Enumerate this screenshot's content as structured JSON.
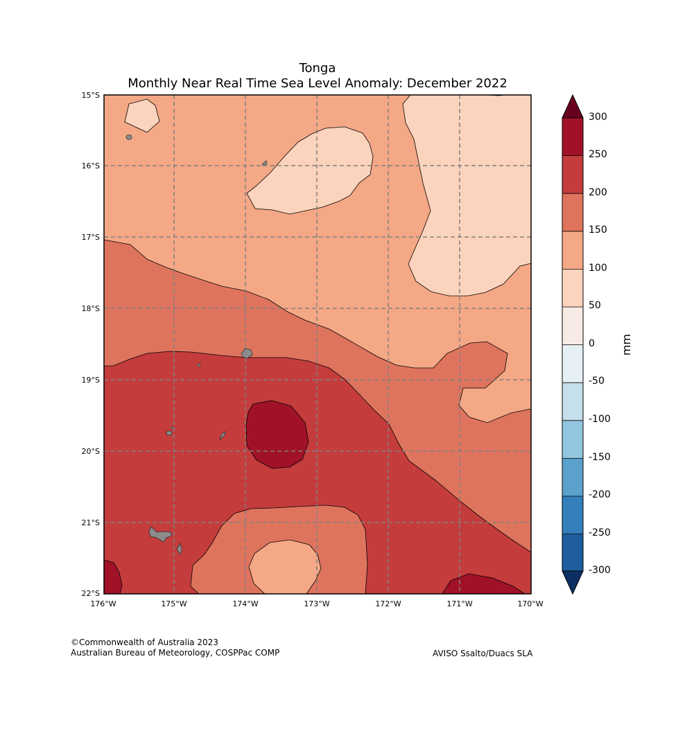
{
  "title": {
    "region": "Tonga",
    "subtitle": "Monthly Near Real Time Sea Level Anomaly: December 2022"
  },
  "map": {
    "lat_labels": [
      "15°S",
      "16°S",
      "17°S",
      "18°S",
      "19°S",
      "20°S",
      "21°S",
      "22°S"
    ],
    "lon_labels": [
      "176°W",
      "175°W",
      "174°W",
      "173°W",
      "172°W",
      "171°W",
      "170°W"
    ],
    "extent": {
      "lon": [
        -176,
        -170
      ],
      "lat": [
        -22,
        -15
      ]
    },
    "gridlines": true
  },
  "colorbar": {
    "unit": "mm",
    "ticks": [
      "300",
      "250",
      "200",
      "150",
      "100",
      "50",
      "0",
      "-50",
      "-100",
      "-150",
      "-200",
      "-250",
      "-300"
    ],
    "colors": {
      "over": "#67001f",
      "250_300": "#a11228",
      "200_250": "#c43c3c",
      "150_200": "#df745e",
      "100_150": "#f4a886",
      "50_100": "#fcd3bc",
      "0_50": "#f8ebe5",
      "neg50_0": "#e6eff4",
      "neg100_neg50": "#c5dfec",
      "neg150_neg100": "#93c5de",
      "neg200_neg150": "#5aa2cc",
      "neg250_neg200": "#3380ba",
      "neg300_neg250": "#1e5e9f",
      "under": "#0c3063"
    }
  },
  "credits": {
    "copyright": "©Commonwealth of Australia 2023",
    "org": "Australian Bureau of Meteorology, COSPPac COMP",
    "source": "AVISO Ssalto/Duacs SLA"
  }
}
